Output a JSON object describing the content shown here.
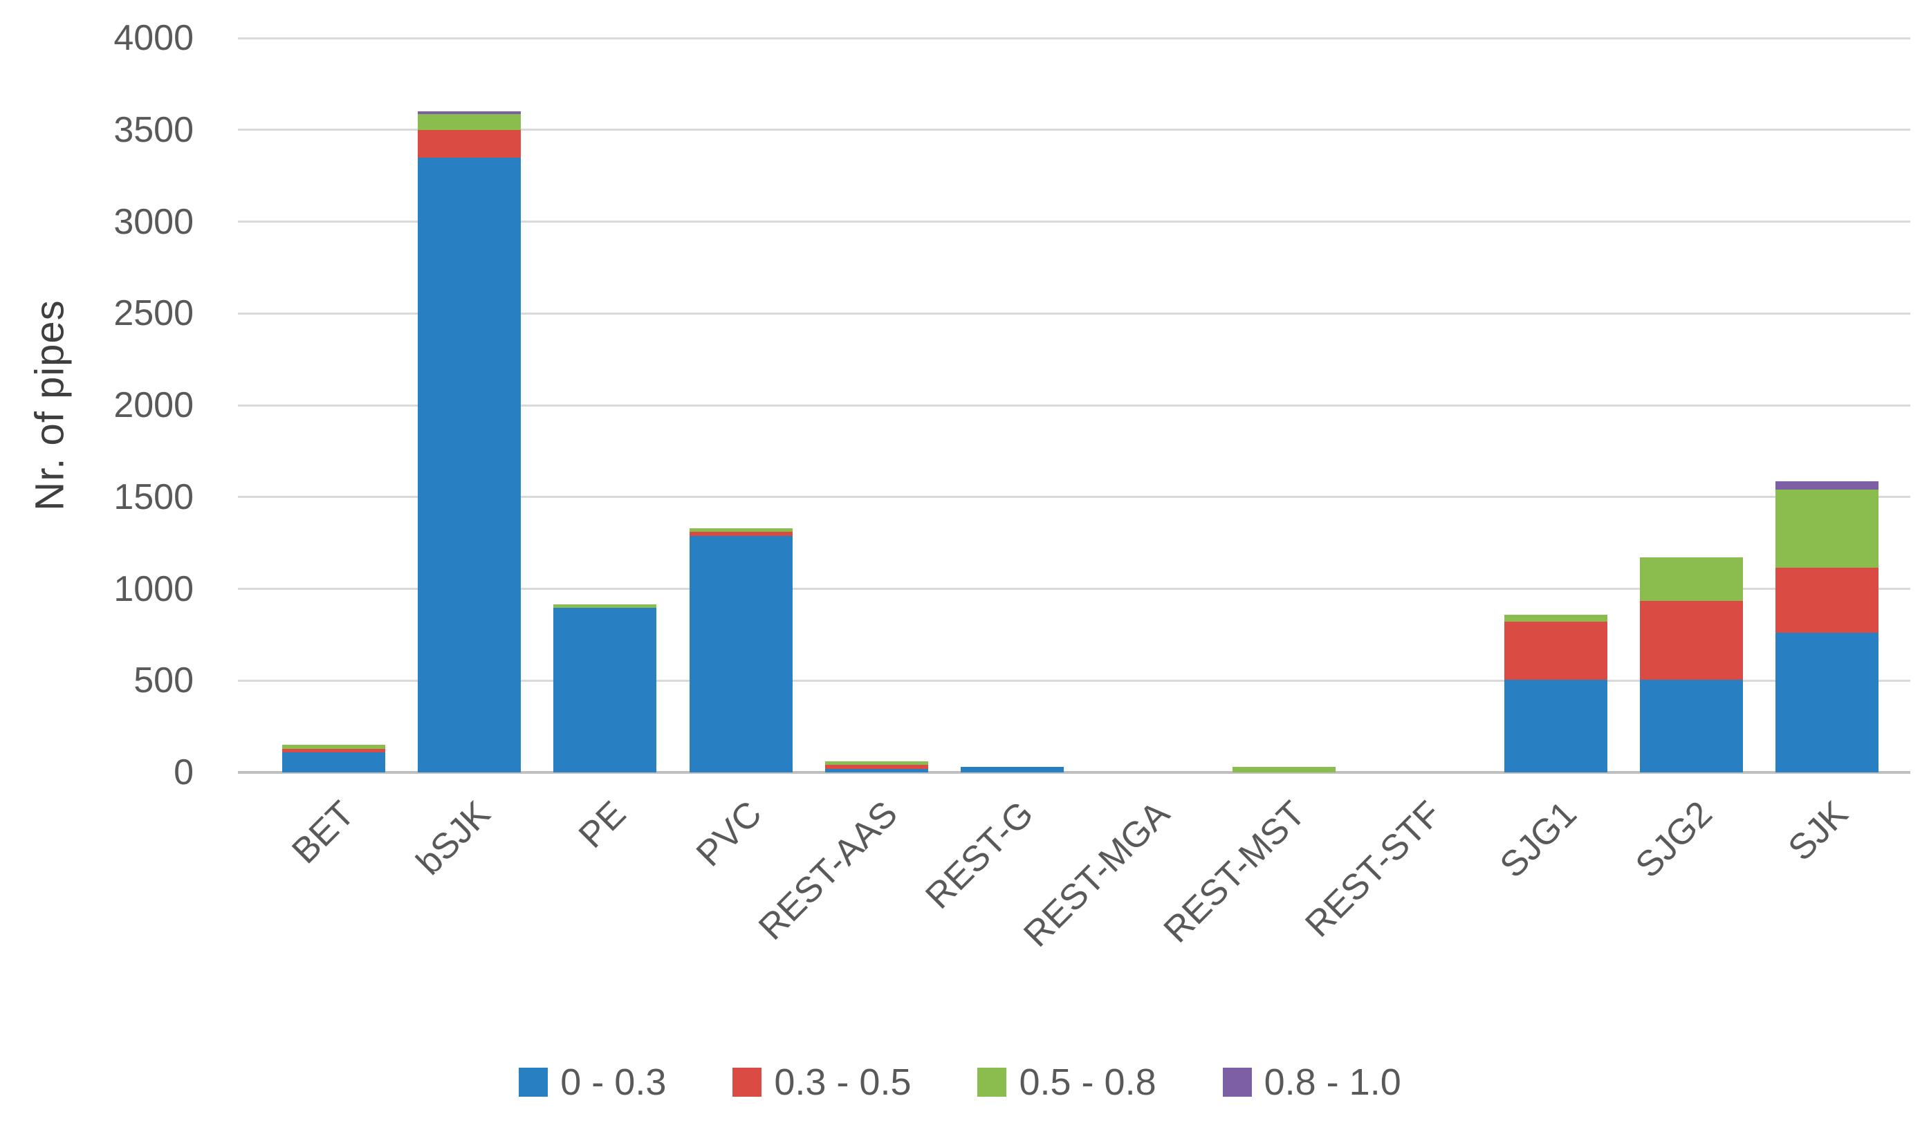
{
  "chart_data": {
    "type": "bar",
    "stacked": true,
    "title": "",
    "xlabel": "",
    "ylabel": "Nr. of pipes",
    "ylim": [
      0,
      4000
    ],
    "yticks": [
      0,
      500,
      1000,
      1500,
      2000,
      2500,
      3000,
      3500,
      4000
    ],
    "grid": "horizontal",
    "legend_position": "bottom",
    "categories": [
      "BET",
      "bSJK",
      "PE",
      "PVC",
      "REST-AAS",
      "REST-G",
      "REST-MGA",
      "REST-MST",
      "REST-STF",
      "SJG1",
      "SJG2",
      "SJK"
    ],
    "series": [
      {
        "name": "0 - 0.3",
        "color": "#2880c3",
        "values": [
          110,
          3350,
          895,
          1290,
          20,
          30,
          0,
          0,
          0,
          505,
          505,
          760
        ]
      },
      {
        "name": "0.3 - 0.5",
        "color": "#d94b43",
        "values": [
          20,
          150,
          0,
          20,
          20,
          0,
          0,
          0,
          0,
          315,
          430,
          355
        ]
      },
      {
        "name": "0.5 - 0.8",
        "color": "#8bbd4e",
        "values": [
          20,
          85,
          20,
          20,
          20,
          0,
          0,
          30,
          0,
          40,
          235,
          425
        ]
      },
      {
        "name": "0.8 - 1.0",
        "color": "#7d5fa5",
        "values": [
          0,
          15,
          0,
          0,
          0,
          0,
          0,
          0,
          0,
          0,
          0,
          45
        ]
      }
    ],
    "totals": [
      150,
      3600,
      915,
      1330,
      60,
      30,
      0,
      30,
      0,
      860,
      1170,
      1585
    ]
  },
  "axis_colors": {
    "gridline": "#d9d9d9",
    "zero_line": "#bfbfbf",
    "tick_text": "#595959",
    "axis_title_text": "#3f3f3f"
  }
}
